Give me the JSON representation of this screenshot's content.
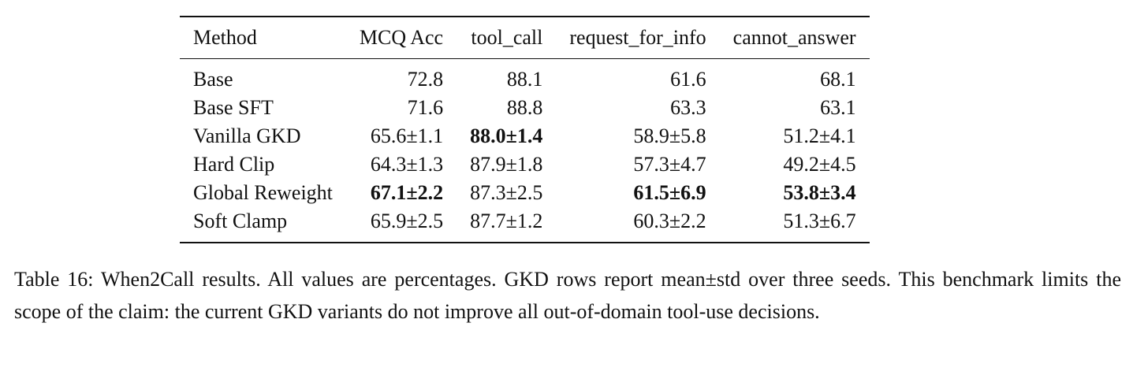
{
  "table": {
    "header": [
      "Method",
      "MCQ Acc",
      "tool_call",
      "request_for_info",
      "cannot_answer"
    ],
    "rows": [
      [
        "Base",
        "72.8",
        "88.1",
        "61.6",
        "68.1"
      ],
      [
        "Base SFT",
        "71.6",
        "88.8",
        "63.3",
        "63.1"
      ],
      [
        "Vanilla GKD",
        "65.6±1.1",
        "88.0±1.4",
        "58.9±5.8",
        "51.2±4.1"
      ],
      [
        "Hard Clip",
        "64.3±1.3",
        "87.9±1.8",
        "57.3±4.7",
        "49.2±4.5"
      ],
      [
        "Global Reweight",
        "67.1±2.2",
        "87.3±2.5",
        "61.5±6.9",
        "53.8±3.4"
      ],
      [
        "Soft Clamp",
        "65.9±2.5",
        "87.7±1.2",
        "60.3±2.2",
        "51.3±6.7"
      ]
    ],
    "bold": [
      [
        2,
        2
      ],
      [
        4,
        1
      ],
      [
        4,
        3
      ],
      [
        4,
        4
      ]
    ]
  },
  "caption": "Table 16: When2Call results. All values are percentages. GKD rows report mean±std over three seeds. This benchmark limits the scope of the claim: the current GKD variants do not improve all out-of-domain tool-use decisions."
}
